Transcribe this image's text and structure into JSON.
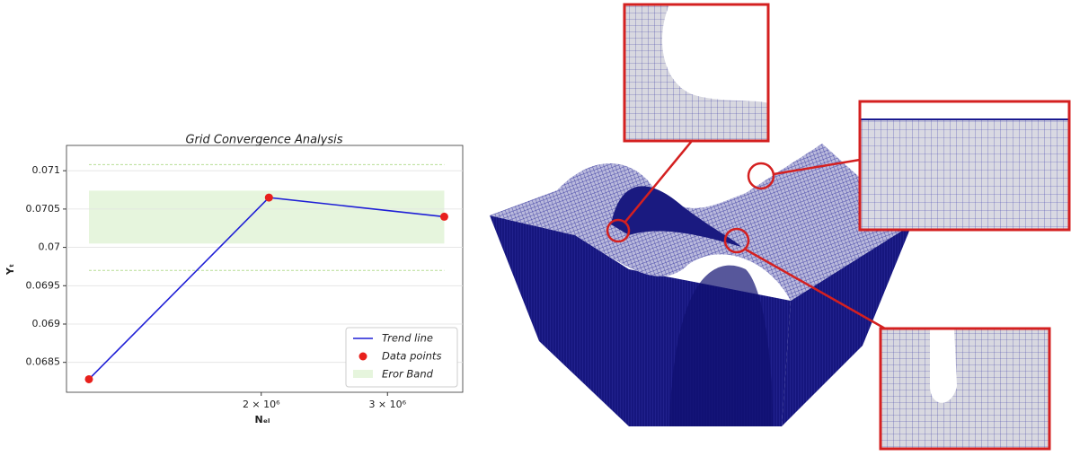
{
  "chart_data": {
    "type": "line",
    "title": "Grid Convergence Analysis",
    "x_label": "Nₑₗ",
    "y_label": "Yₜ",
    "log_x": true,
    "grid": true,
    "legend_position": "lower right",
    "x": [
      1150000,
      2050000,
      3600000
    ],
    "series": [
      {
        "name": "Trend line",
        "color": "#1f1fd6",
        "values": [
          0.06828,
          0.07065,
          0.0704
        ]
      },
      {
        "name": "Data points",
        "color": "#e8201c"
      }
    ],
    "error_band": {
      "name": "Eror Band",
      "color": "#e6f5dd",
      "low": 0.07005,
      "high": 0.07074,
      "bounds": [
        0.0697,
        0.07108
      ],
      "bounds_color": "#b7de95"
    },
    "xlim": [
      1070000,
      3820000
    ],
    "ylim": [
      0.06811,
      0.07133
    ],
    "xticks": [
      {
        "value": 2000000,
        "label": "2 × 10⁶"
      },
      {
        "value": 3000000,
        "label": "3 × 10⁶"
      }
    ],
    "yticks": [
      0.0685,
      0.069,
      0.0695,
      0.07,
      0.0705,
      0.071
    ]
  }
}
